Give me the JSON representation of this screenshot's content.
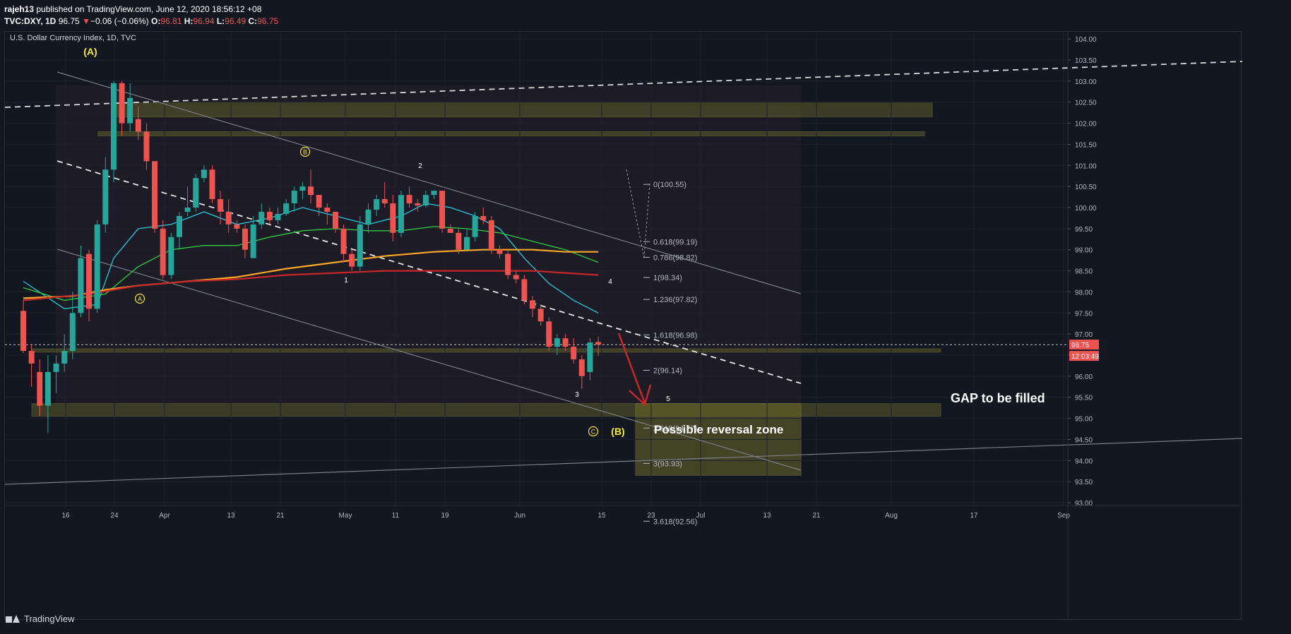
{
  "header": {
    "user": "rajeh13",
    "published": "published on TradingView.com, June 12, 2020 18:56:12 +08",
    "symbol": "TVC:DXY, 1D",
    "price": "96.75",
    "change_arrow": "▼",
    "change": "−0.06 (−0.06%)",
    "o_label": "O:",
    "o": "96.81",
    "h_label": "H:",
    "h": "96.94",
    "l_label": "L:",
    "l": "96.49",
    "c_label": "C:",
    "c": "96.75"
  },
  "footer": {
    "brand": "TradingView"
  },
  "colors": {
    "up": "#26a69a",
    "down": "#ef5350",
    "bg": "#131722",
    "zone": "#6b6a2a",
    "accent": "#f9e83a"
  },
  "chart_data": {
    "type": "candlestick",
    "title": "U.S. Dollar Currency Index, 1D, TVC",
    "ylim": [
      92.4,
      104.3
    ],
    "y_ticks": [
      "104.00",
      "103.50",
      "103.00",
      "102.50",
      "102.00",
      "101.50",
      "101.00",
      "100.50",
      "100.00",
      "99.50",
      "99.00",
      "98.50",
      "98.00",
      "97.50",
      "97.00",
      "96.50",
      "96.00",
      "95.50",
      "95.00",
      "94.50",
      "94.00",
      "93.50",
      "93.00"
    ],
    "x_ticks": [
      "16",
      "24",
      "Apr",
      "13",
      "21",
      "May",
      "11",
      "19",
      "Jun",
      "15",
      "23",
      "Jul",
      "13",
      "21",
      "Aug",
      "17",
      "Sep"
    ],
    "last_price": "96.75",
    "countdown": "12:03:49",
    "candles": [
      {
        "o": 97.55,
        "h": 97.8,
        "l": 96.55,
        "c": 96.6
      },
      {
        "o": 96.6,
        "h": 96.75,
        "l": 95.75,
        "c": 96.3
      },
      {
        "o": 96.1,
        "h": 96.4,
        "l": 95.05,
        "c": 95.3
      },
      {
        "o": 95.3,
        "h": 96.5,
        "l": 94.65,
        "c": 96.1
      },
      {
        "o": 96.1,
        "h": 96.5,
        "l": 95.6,
        "c": 96.3
      },
      {
        "o": 96.3,
        "h": 97.0,
        "l": 96.1,
        "c": 96.6
      },
      {
        "o": 96.6,
        "h": 98.0,
        "l": 96.4,
        "c": 97.5
      },
      {
        "o": 97.5,
        "h": 99.1,
        "l": 97.4,
        "c": 98.8
      },
      {
        "o": 98.9,
        "h": 99.0,
        "l": 97.3,
        "c": 97.6
      },
      {
        "o": 97.6,
        "h": 99.7,
        "l": 97.5,
        "c": 99.6
      },
      {
        "o": 99.6,
        "h": 101.2,
        "l": 99.4,
        "c": 100.9
      },
      {
        "o": 100.9,
        "h": 103.0,
        "l": 100.6,
        "c": 102.95
      },
      {
        "o": 102.95,
        "h": 103.0,
        "l": 101.7,
        "c": 102.0
      },
      {
        "o": 102.0,
        "h": 102.95,
        "l": 101.8,
        "c": 102.6
      },
      {
        "o": 102.1,
        "h": 102.4,
        "l": 101.6,
        "c": 101.8
      },
      {
        "o": 101.8,
        "h": 102.0,
        "l": 100.9,
        "c": 101.1
      },
      {
        "o": 101.1,
        "h": 101.1,
        "l": 99.4,
        "c": 99.5
      },
      {
        "o": 99.5,
        "h": 99.7,
        "l": 98.3,
        "c": 98.4
      },
      {
        "o": 98.4,
        "h": 99.4,
        "l": 98.3,
        "c": 99.3
      },
      {
        "o": 99.3,
        "h": 99.9,
        "l": 99.0,
        "c": 99.8
      },
      {
        "o": 99.9,
        "h": 100.5,
        "l": 99.8,
        "c": 100.0
      },
      {
        "o": 100.0,
        "h": 100.8,
        "l": 99.9,
        "c": 100.7
      },
      {
        "o": 100.7,
        "h": 101.0,
        "l": 100.6,
        "c": 100.9
      },
      {
        "o": 100.9,
        "h": 101.0,
        "l": 100.1,
        "c": 100.2
      },
      {
        "o": 100.2,
        "h": 100.4,
        "l": 99.6,
        "c": 99.9
      },
      {
        "o": 99.9,
        "h": 100.2,
        "l": 99.4,
        "c": 99.6
      },
      {
        "o": 99.6,
        "h": 99.7,
        "l": 99.4,
        "c": 99.5
      },
      {
        "o": 99.5,
        "h": 99.6,
        "l": 98.8,
        "c": 99.0
      },
      {
        "o": 98.8,
        "h": 99.8,
        "l": 98.8,
        "c": 99.6
      },
      {
        "o": 99.6,
        "h": 100.1,
        "l": 99.5,
        "c": 99.9
      },
      {
        "o": 99.9,
        "h": 100.0,
        "l": 99.6,
        "c": 99.7
      },
      {
        "o": 99.7,
        "h": 100.0,
        "l": 99.6,
        "c": 99.85
      },
      {
        "o": 99.85,
        "h": 100.2,
        "l": 99.8,
        "c": 100.1
      },
      {
        "o": 100.1,
        "h": 100.5,
        "l": 99.9,
        "c": 100.4
      },
      {
        "o": 100.4,
        "h": 100.6,
        "l": 100.2,
        "c": 100.5
      },
      {
        "o": 100.5,
        "h": 100.9,
        "l": 100.1,
        "c": 100.3
      },
      {
        "o": 100.3,
        "h": 100.3,
        "l": 99.8,
        "c": 100.0
      },
      {
        "o": 100.0,
        "h": 100.1,
        "l": 99.6,
        "c": 99.9
      },
      {
        "o": 99.9,
        "h": 99.9,
        "l": 99.4,
        "c": 99.5
      },
      {
        "o": 99.5,
        "h": 99.6,
        "l": 98.7,
        "c": 98.9
      },
      {
        "o": 98.9,
        "h": 99.0,
        "l": 98.5,
        "c": 98.6
      },
      {
        "o": 98.6,
        "h": 99.8,
        "l": 98.5,
        "c": 99.6
      },
      {
        "o": 99.6,
        "h": 100.1,
        "l": 99.4,
        "c": 99.95
      },
      {
        "o": 99.95,
        "h": 100.3,
        "l": 99.8,
        "c": 100.2
      },
      {
        "o": 100.2,
        "h": 100.6,
        "l": 100.0,
        "c": 100.1
      },
      {
        "o": 100.1,
        "h": 100.3,
        "l": 99.2,
        "c": 99.4
      },
      {
        "o": 99.4,
        "h": 100.4,
        "l": 99.3,
        "c": 100.3
      },
      {
        "o": 100.3,
        "h": 100.5,
        "l": 100.0,
        "c": 100.1
      },
      {
        "o": 100.1,
        "h": 100.2,
        "l": 99.9,
        "c": 100.05
      },
      {
        "o": 100.05,
        "h": 100.4,
        "l": 100.0,
        "c": 100.3
      },
      {
        "o": 100.3,
        "h": 100.4,
        "l": 100.2,
        "c": 100.4
      },
      {
        "o": 100.4,
        "h": 100.4,
        "l": 99.4,
        "c": 99.5
      },
      {
        "o": 99.5,
        "h": 99.6,
        "l": 99.4,
        "c": 99.4
      },
      {
        "o": 99.4,
        "h": 99.5,
        "l": 98.9,
        "c": 99.0
      },
      {
        "o": 99.0,
        "h": 99.5,
        "l": 99.0,
        "c": 99.3
      },
      {
        "o": 99.3,
        "h": 99.9,
        "l": 99.2,
        "c": 99.8
      },
      {
        "o": 99.8,
        "h": 100.0,
        "l": 99.6,
        "c": 99.7
      },
      {
        "o": 99.7,
        "h": 99.8,
        "l": 98.9,
        "c": 99.0
      },
      {
        "o": 99.0,
        "h": 99.1,
        "l": 98.8,
        "c": 98.9
      },
      {
        "o": 98.9,
        "h": 99.0,
        "l": 98.3,
        "c": 98.4
      },
      {
        "o": 98.4,
        "h": 98.5,
        "l": 98.2,
        "c": 98.3
      },
      {
        "o": 98.3,
        "h": 98.4,
        "l": 97.7,
        "c": 97.8
      },
      {
        "o": 97.8,
        "h": 97.9,
        "l": 97.4,
        "c": 97.6
      },
      {
        "o": 97.6,
        "h": 97.7,
        "l": 97.2,
        "c": 97.3
      },
      {
        "o": 97.3,
        "h": 97.4,
        "l": 96.6,
        "c": 96.7
      },
      {
        "o": 96.7,
        "h": 97.0,
        "l": 96.5,
        "c": 96.9
      },
      {
        "o": 96.9,
        "h": 97.0,
        "l": 96.6,
        "c": 96.7
      },
      {
        "o": 96.7,
        "h": 96.9,
        "l": 96.3,
        "c": 96.4
      },
      {
        "o": 96.4,
        "h": 96.5,
        "l": 95.7,
        "c": 96.0
      },
      {
        "o": 96.1,
        "h": 96.9,
        "l": 95.9,
        "c": 96.8
      },
      {
        "o": 96.81,
        "h": 96.94,
        "l": 96.49,
        "c": 96.75
      }
    ],
    "moving_averages": [
      {
        "name": "",
        "color": "#26c6da",
        "values": [
          [
            0,
            98.25
          ],
          [
            5,
            97.6
          ],
          [
            9,
            97.7
          ],
          [
            11,
            98.8
          ],
          [
            14,
            99.5
          ],
          [
            18,
            99.6
          ],
          [
            22,
            99.9
          ],
          [
            26,
            99.6
          ],
          [
            30,
            99.75
          ],
          [
            34,
            100.0
          ],
          [
            38,
            99.8
          ],
          [
            42,
            99.6
          ],
          [
            46,
            99.8
          ],
          [
            49,
            100.1
          ],
          [
            52,
            100.0
          ],
          [
            55,
            99.8
          ],
          [
            58,
            99.5
          ],
          [
            61,
            98.8
          ],
          [
            64,
            98.2
          ],
          [
            67,
            97.8
          ],
          [
            70,
            97.5
          ]
        ]
      },
      {
        "name": "",
        "color": "#2ecc40",
        "values": [
          [
            0,
            98.1
          ],
          [
            5,
            97.8
          ],
          [
            10,
            97.95
          ],
          [
            14,
            98.6
          ],
          [
            18,
            99.0
          ],
          [
            22,
            99.1
          ],
          [
            26,
            99.1
          ],
          [
            30,
            99.3
          ],
          [
            34,
            99.45
          ],
          [
            38,
            99.5
          ],
          [
            42,
            99.45
          ],
          [
            46,
            99.45
          ],
          [
            50,
            99.55
          ],
          [
            54,
            99.5
          ],
          [
            58,
            99.4
          ],
          [
            62,
            99.2
          ],
          [
            66,
            99.0
          ],
          [
            70,
            98.7
          ]
        ]
      },
      {
        "name": "",
        "color": "#ffa726",
        "values": [
          [
            0,
            97.85
          ],
          [
            6,
            97.9
          ],
          [
            10,
            98.05
          ],
          [
            14,
            98.15
          ],
          [
            20,
            98.25
          ],
          [
            26,
            98.35
          ],
          [
            32,
            98.55
          ],
          [
            38,
            98.7
          ],
          [
            44,
            98.85
          ],
          [
            50,
            98.95
          ],
          [
            56,
            99.0
          ],
          [
            62,
            99.0
          ],
          [
            66,
            98.95
          ],
          [
            70,
            98.95
          ]
        ]
      },
      {
        "name": "",
        "color": "#c62828",
        "values": [
          [
            0,
            97.8
          ],
          [
            8,
            97.95
          ],
          [
            14,
            98.15
          ],
          [
            20,
            98.25
          ],
          [
            26,
            98.3
          ],
          [
            32,
            98.4
          ],
          [
            38,
            98.45
          ],
          [
            44,
            98.5
          ],
          [
            50,
            98.5
          ],
          [
            56,
            98.5
          ],
          [
            62,
            98.5
          ],
          [
            66,
            98.45
          ],
          [
            70,
            98.4
          ]
        ]
      }
    ],
    "fib_levels": [
      {
        "label": "0(100.55)",
        "value": 100.55
      },
      {
        "label": "0.618(99.19)",
        "value": 99.19
      },
      {
        "label": "0.786(98.82)",
        "value": 98.82
      },
      {
        "label": "1(98.34)",
        "value": 98.34
      },
      {
        "label": "1.236(97.82)",
        "value": 97.82
      },
      {
        "label": "1.618(96.98)",
        "value": 96.98
      },
      {
        "label": "2(96.14)",
        "value": 96.14
      },
      {
        "label": "2.618(94.77)",
        "value": 94.77
      },
      {
        "label": "3(93.93)",
        "value": 93.93
      },
      {
        "label": "3.618(92.56)",
        "value": 92.56
      }
    ],
    "zones": [
      {
        "name": "upper-zone-1",
        "y": [
          102.15,
          102.5
        ]
      },
      {
        "name": "upper-zone-2",
        "y": [
          101.7,
          101.8
        ]
      },
      {
        "name": "current-zone",
        "y": [
          96.57,
          96.65
        ]
      },
      {
        "name": "gap-zone",
        "y": [
          95.05,
          95.35
        ]
      },
      {
        "name": "reversal-zone",
        "y": [
          93.65,
          95.35
        ]
      }
    ],
    "annotations": {
      "wave_A_major": "(A)",
      "wave_B_major": "(B)",
      "wave_A_minor": "A",
      "wave_B_minor": "B",
      "wave_C_minor": "C",
      "count_1": "1",
      "count_2": "2",
      "count_3": "3",
      "count_4": "4",
      "count_5": "5",
      "gap_text": "GAP to be filled",
      "reversal_text": "Possible reversal zone"
    }
  }
}
